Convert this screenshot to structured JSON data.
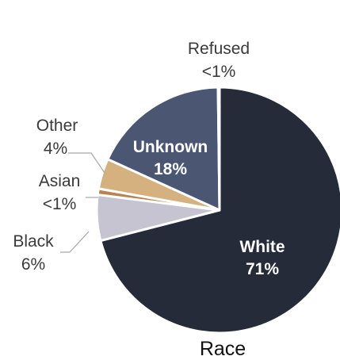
{
  "chart_data": {
    "type": "pie",
    "title": "Race",
    "slices": [
      {
        "name": "White",
        "value": 71,
        "label": "71%",
        "color": "#262b39"
      },
      {
        "name": "Black",
        "value": 6,
        "label": "6%",
        "color": "#c7c4d2"
      },
      {
        "name": "Asian",
        "value": 0.8,
        "label": "<1%",
        "color": "#b7844f"
      },
      {
        "name": "Other",
        "value": 4,
        "label": "4%",
        "color": "#d5b180"
      },
      {
        "name": "Unknown",
        "value": 18,
        "label": "18%",
        "color": "#4b5672"
      },
      {
        "name": "Refused",
        "value": 0.2,
        "label": "<1%",
        "color": "#ffffff"
      }
    ]
  }
}
